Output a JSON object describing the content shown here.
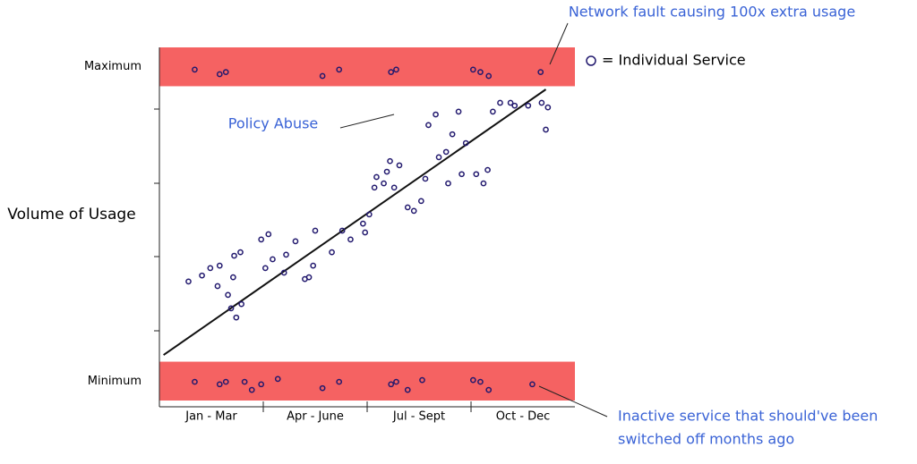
{
  "chart_data": {
    "type": "scatter",
    "y_label": "Volume of Usage",
    "band_labels": [
      "Maximum",
      "Minimum"
    ],
    "band_color": "#f56262",
    "categories": [
      "Jan - Mar",
      "Apr - June",
      "Jul - Sept",
      "Oct - Dec"
    ],
    "xlim": [
      0,
      4
    ],
    "ylim": [
      0,
      10
    ],
    "bands": [
      [
        8.9,
        10
      ],
      [
        0,
        1.1
      ]
    ],
    "series": [
      {
        "name": "= Individual Service",
        "color": "#22196e",
        "x": [
          0.34,
          0.58,
          0.64,
          1.57,
          1.73,
          2.23,
          2.28,
          3.02,
          3.09,
          3.17,
          3.67,
          0.34,
          0.58,
          0.64,
          0.82,
          0.89,
          0.98,
          1.14,
          1.57,
          1.73,
          2.23,
          2.28,
          2.39,
          2.53,
          3.02,
          3.09,
          3.17,
          3.59,
          0.28,
          0.41,
          0.49,
          0.58,
          0.56,
          0.66,
          0.71,
          0.72,
          0.78,
          0.69,
          0.74,
          0.79,
          0.98,
          1.05,
          1.02,
          1.09,
          1.2,
          1.22,
          1.31,
          1.4,
          1.44,
          1.5,
          1.48,
          1.66,
          1.76,
          1.84,
          1.96,
          1.98,
          2.02,
          2.07,
          2.09,
          2.16,
          2.19,
          2.22,
          2.26,
          2.31,
          2.39,
          2.45,
          2.52,
          2.56,
          2.59,
          2.66,
          2.69,
          2.76,
          2.78,
          2.82,
          2.88,
          2.91,
          2.95,
          3.05,
          3.12,
          3.16,
          3.21,
          3.28,
          3.38,
          3.42,
          3.55,
          3.68,
          3.74,
          3.72
        ],
        "values": [
          9.37,
          9.24,
          9.3,
          9.19,
          9.37,
          9.3,
          9.37,
          9.37,
          9.3,
          9.19,
          9.3,
          0.53,
          0.46,
          0.53,
          0.53,
          0.3,
          0.46,
          0.61,
          0.35,
          0.53,
          0.46,
          0.53,
          0.3,
          0.58,
          0.58,
          0.53,
          0.3,
          0.46,
          3.37,
          3.54,
          3.75,
          3.82,
          3.24,
          2.99,
          3.49,
          4.1,
          4.2,
          2.61,
          2.35,
          2.73,
          4.56,
          4.71,
          3.75,
          4.0,
          3.62,
          4.13,
          4.51,
          3.44,
          3.49,
          4.81,
          3.82,
          4.2,
          4.81,
          4.56,
          5.01,
          4.76,
          5.27,
          6.03,
          6.33,
          6.15,
          6.48,
          6.78,
          6.03,
          6.66,
          5.47,
          5.37,
          5.65,
          6.28,
          7.8,
          8.1,
          6.89,
          7.04,
          6.15,
          7.54,
          8.18,
          6.41,
          7.29,
          6.41,
          6.15,
          6.53,
          8.18,
          8.43,
          8.43,
          8.35,
          8.35,
          8.43,
          8.3,
          7.67
        ]
      }
    ],
    "trend": {
      "color": "#111111",
      "x": [
        0.04,
        3.72
      ],
      "values": [
        1.29,
        8.81
      ]
    },
    "annotations": [
      {
        "text": [
          "Network fault causing 100x extra usage"
        ],
        "color": "#3a63d6"
      },
      {
        "text": [
          "Policy Abuse"
        ],
        "color": "#3a63d6"
      },
      {
        "text": [
          "Inactive service that should've been",
          "switched off months ago"
        ],
        "color": "#3a63d6"
      }
    ]
  }
}
